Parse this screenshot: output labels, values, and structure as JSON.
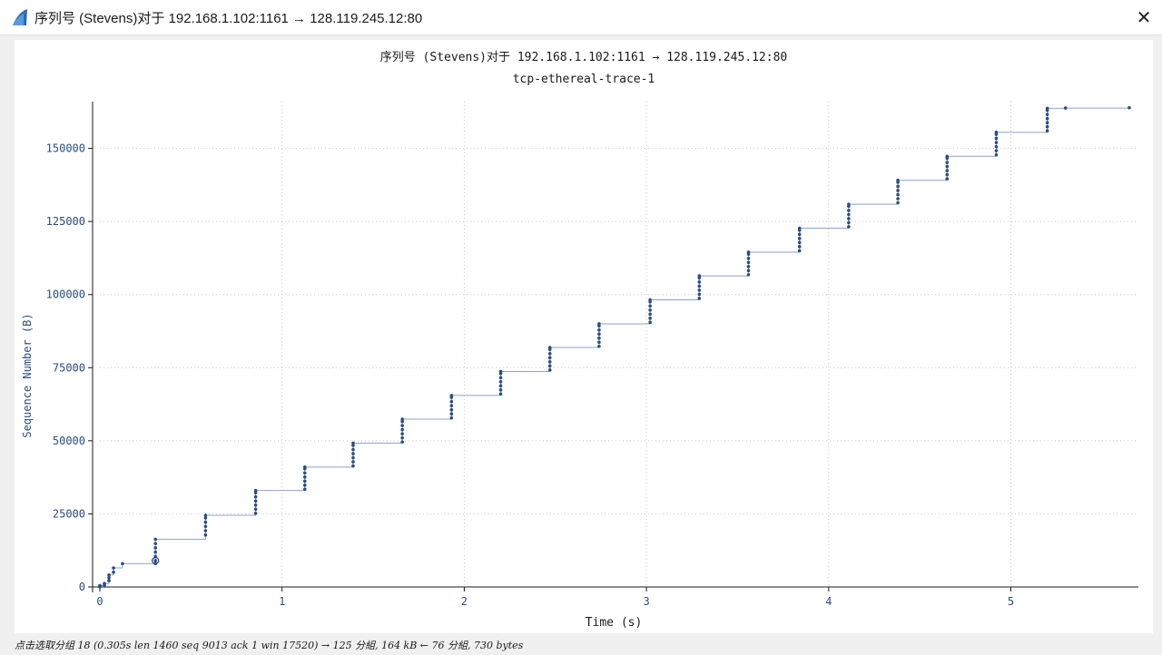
{
  "window": {
    "title": "序列号 (Stevens)对于 192.168.1.102:1161 → 128.119.245.12:80",
    "close_glyph": "✕",
    "app_icon": "shark-fin-icon"
  },
  "chart_data": {
    "type": "scatter",
    "title": "序列号 (Stevens)对于 192.168.1.102:1161 → 128.119.245.12:80",
    "subtitle": "tcp-ethereal-trace-1",
    "xlabel": "Time (s)",
    "ylabel": "Sequence Number (B)",
    "xlim": [
      0,
      5.7
    ],
    "ylim": [
      0,
      166000
    ],
    "xticks": [
      0,
      1,
      2,
      3,
      4,
      5
    ],
    "yticks": [
      0,
      25000,
      50000,
      75000,
      100000,
      125000,
      150000
    ],
    "grid": true,
    "color": "#2b4d7e",
    "line_color": "#8aa4c8",
    "selected_point": {
      "x": 0.305,
      "y": 9013
    },
    "bursts": [
      {
        "x": 0.0,
        "y": [
          1,
          250,
          500
        ]
      },
      {
        "x": 0.025,
        "y": [
          566,
          1178
        ]
      },
      {
        "x": 0.05,
        "y": [
          2138,
          3198,
          4100
        ]
      },
      {
        "x": 0.075,
        "y": [
          5058,
          6518
        ]
      },
      {
        "x": 0.124,
        "y": [
          7978
        ]
      },
      {
        "x": 0.305,
        "y": [
          8000,
          9013,
          10473,
          11933,
          13393,
          14853,
          16313
        ]
      },
      {
        "x": 0.58,
        "y": [
          17773,
          19233,
          20693,
          22153,
          23613,
          24500
        ]
      },
      {
        "x": 0.855,
        "y": [
          25200,
          26600,
          28000,
          29400,
          30800,
          32200,
          33000
        ]
      },
      {
        "x": 1.125,
        "y": [
          33400,
          34800,
          36200,
          37600,
          39000,
          40400,
          41000
        ]
      },
      {
        "x": 1.39,
        "y": [
          41400,
          42800,
          44200,
          45600,
          47000,
          48400,
          49200
        ]
      },
      {
        "x": 1.66,
        "y": [
          49600,
          51000,
          52400,
          53800,
          55200,
          56600,
          57400
        ]
      },
      {
        "x": 1.93,
        "y": [
          57800,
          59200,
          60600,
          62000,
          63400,
          64800,
          65500
        ]
      },
      {
        "x": 2.2,
        "y": [
          66000,
          67400,
          68800,
          70200,
          71600,
          73000,
          73700
        ]
      },
      {
        "x": 2.47,
        "y": [
          74200,
          75600,
          77000,
          78400,
          79800,
          81200,
          81900
        ]
      },
      {
        "x": 2.74,
        "y": [
          82300,
          83700,
          85100,
          86500,
          87900,
          89300,
          90000
        ]
      },
      {
        "x": 3.02,
        "y": [
          90500,
          91900,
          93300,
          94700,
          96100,
          97500,
          98200
        ]
      },
      {
        "x": 3.29,
        "y": [
          98700,
          100100,
          101500,
          102900,
          104300,
          105700,
          106400
        ]
      },
      {
        "x": 3.56,
        "y": [
          106800,
          108200,
          109600,
          111000,
          112400,
          113800,
          114500
        ]
      },
      {
        "x": 3.84,
        "y": [
          115000,
          116400,
          117800,
          119200,
          120600,
          122000,
          122700
        ]
      },
      {
        "x": 4.11,
        "y": [
          123200,
          124600,
          126000,
          127400,
          128800,
          130200,
          130900
        ]
      },
      {
        "x": 4.38,
        "y": [
          131400,
          132800,
          134200,
          135600,
          137000,
          138400,
          139100
        ]
      },
      {
        "x": 4.65,
        "y": [
          139600,
          141000,
          142400,
          143800,
          145200,
          146600,
          147300
        ]
      },
      {
        "x": 4.92,
        "y": [
          147800,
          149200,
          150600,
          152000,
          153400,
          154800,
          155500
        ]
      },
      {
        "x": 5.2,
        "y": [
          156000,
          157400,
          158800,
          160200,
          161600,
          163000,
          163700
        ]
      },
      {
        "x": 5.3,
        "y": [
          163800
        ]
      },
      {
        "x": 5.65,
        "y": [
          163900
        ]
      }
    ]
  },
  "status": {
    "text": "点击选取分组 18 (0.305s len 1460 seq 9013 ack 1 win 17520) → 125 分組, 164 kB ← 76 分組, 730 bytes"
  }
}
